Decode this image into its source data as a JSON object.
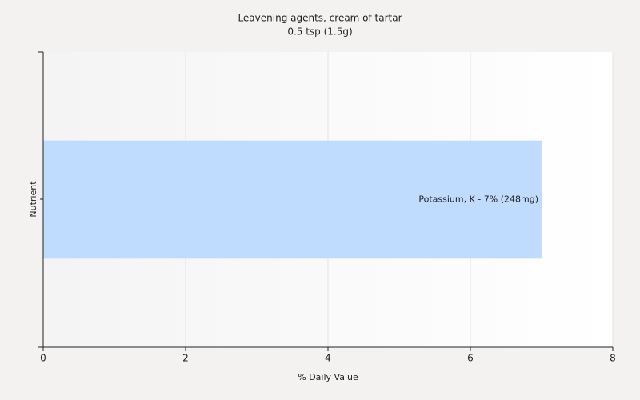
{
  "chart_data": {
    "type": "hbar",
    "title": "Leavening agents, cream of tartar",
    "subtitle": "0.5 tsp (1.5g)",
    "x_label": "% Daily Value",
    "y_label": "Nutrient",
    "categories": [
      null
    ],
    "values": [
      7
    ],
    "value_labels": [
      "Potassium, K - 7% (248mg)"
    ],
    "color": "#bfdbfd",
    "xlim": [
      0,
      8
    ],
    "xticks": [
      0,
      2,
      4,
      6,
      8
    ],
    "grid": true
  }
}
